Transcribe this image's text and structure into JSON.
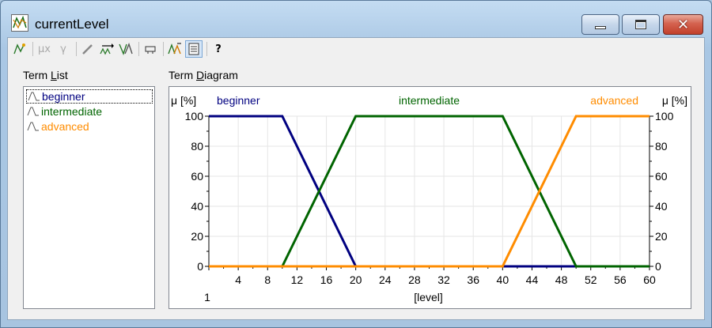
{
  "window": {
    "title": "currentLevel"
  },
  "toolbar": {
    "icons": [
      "term-wizard-icon",
      "mu-x-icon",
      "gamma-icon",
      "pen-icon",
      "shift-icon",
      "linguistic-icon",
      "range-icon",
      "term-edit-icon",
      "list-view-icon",
      "help-icon"
    ],
    "mu_label": "μx",
    "gamma_label": "γ",
    "help_label": "?"
  },
  "term_list": {
    "label_pre": "Term ",
    "label_key": "L",
    "label_post": "ist",
    "items": [
      {
        "label": "beginner",
        "color": "#000080"
      },
      {
        "label": "intermediate",
        "color": "#006400"
      },
      {
        "label": "advanced",
        "color": "#ff8c00"
      }
    ]
  },
  "term_diagram": {
    "label_pre": "Term ",
    "label_key": "D",
    "label_post": "iagram"
  },
  "chart_data": {
    "type": "line",
    "ylabel_left": "μ [%]",
    "ylabel_right": "μ [%]",
    "xlabel": "[level]",
    "x_start_label": "1",
    "xlim": [
      0,
      60
    ],
    "ylim": [
      0,
      100
    ],
    "x_ticks": [
      4,
      8,
      12,
      16,
      20,
      24,
      28,
      32,
      36,
      40,
      44,
      48,
      52,
      56,
      60
    ],
    "y_ticks": [
      0,
      20,
      40,
      60,
      80,
      100
    ],
    "grid": true,
    "series": [
      {
        "name": "beginner",
        "color": "#000080",
        "x": [
          0,
          10,
          20,
          60
        ],
        "y": [
          100,
          100,
          0,
          0
        ]
      },
      {
        "name": "intermediate",
        "color": "#006400",
        "x": [
          0,
          10,
          20,
          40,
          50,
          60
        ],
        "y": [
          0,
          0,
          100,
          100,
          0,
          0
        ]
      },
      {
        "name": "advanced",
        "color": "#ff8c00",
        "x": [
          0,
          40,
          50,
          60
        ],
        "y": [
          0,
          0,
          100,
          100
        ]
      }
    ]
  }
}
